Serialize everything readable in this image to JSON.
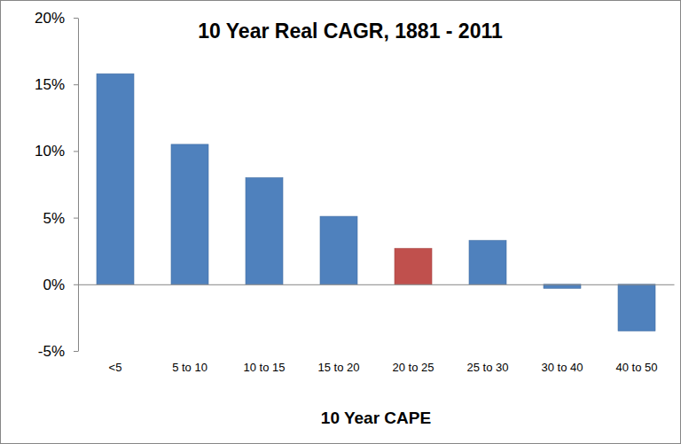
{
  "chart_data": {
    "type": "bar",
    "title": "10 Year Real CAGR, 1881 - 2011",
    "x_label": "10 Year CAPE",
    "categories": [
      "<5",
      "5 to 10",
      "10 to 15",
      "15 to 20",
      "20 to 25",
      "25 to 30",
      "30 to 40",
      "40 to 50"
    ],
    "values": [
      15.8,
      10.5,
      8.0,
      5.1,
      2.7,
      3.3,
      -0.3,
      -3.5
    ],
    "colors": [
      "#4f81bd",
      "#4f81bd",
      "#4f81bd",
      "#4f81bd",
      "#c0504d",
      "#4f81bd",
      "#4f81bd",
      "#4f81bd"
    ],
    "ylim": [
      -5,
      20
    ],
    "yticks": [
      {
        "value": -5,
        "label": "-5%"
      },
      {
        "value": 0,
        "label": "0%"
      },
      {
        "value": 5,
        "label": "5%"
      },
      {
        "value": 10,
        "label": "10%"
      },
      {
        "value": 15,
        "label": "15%"
      },
      {
        "value": 20,
        "label": "20%"
      }
    ],
    "grid": false
  }
}
